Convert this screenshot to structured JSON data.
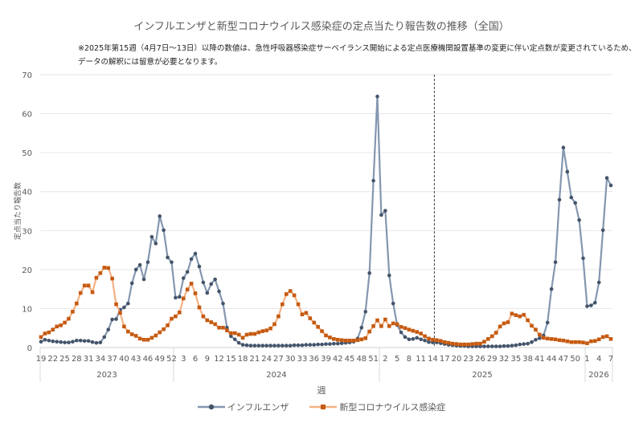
{
  "title": "インフルエンザと新型コロナウイルス感染症の定点当たり報告数の推移（全国）",
  "note_lines": [
    "※2025年第15週（4月7日～13日）以降の数値は、急性呼吸器感染症サーベイランス開始による定点医療機関設置基準の変更に伴い定点数が変更されているため、",
    "データの解釈には留意が必要となります。"
  ],
  "chart_data": {
    "type": "line",
    "title": "インフルエンザと新型コロナウイルス感染症の定点当たり報告数の推移（全国）",
    "xlabel": "週",
    "ylabel": "定点当たり報告数",
    "ylim": [
      0,
      70
    ],
    "yticks": [
      0,
      10,
      20,
      30,
      40,
      50,
      60,
      70
    ],
    "grid": true,
    "legend_placement": "bottom",
    "years": [
      {
        "year": "2023",
        "weeks": [
          19,
          52
        ]
      },
      {
        "year": "2024",
        "weeks": [
          1,
          52
        ]
      },
      {
        "year": "2025",
        "weeks": [
          1,
          52
        ]
      },
      {
        "year": "2026",
        "weeks": [
          1,
          7
        ]
      }
    ],
    "annotation": {
      "type": "dashed-vertical-line",
      "between": "2025 week 14 / week 15"
    },
    "series": [
      {
        "name": "インフルエンザ",
        "line_color": "#8497b0",
        "marker_color": "#44546a",
        "marker": "circle",
        "values": [
          1.5,
          2.0,
          1.8,
          1.6,
          1.5,
          1.4,
          1.3,
          1.3,
          1.5,
          1.8,
          1.8,
          1.7,
          1.7,
          1.4,
          1.2,
          1.3,
          2.7,
          4.6,
          7.2,
          7.3,
          9.7,
          10.3,
          11.3,
          16.5,
          20.0,
          21.2,
          17.5,
          21.9,
          28.4,
          26.7,
          33.7,
          30.1,
          23.1,
          21.9,
          12.8,
          13.0,
          17.8,
          19.4,
          22.7,
          24.1,
          20.8,
          16.7,
          14.0,
          16.3,
          17.5,
          14.4,
          11.3,
          5.1,
          2.9,
          2.1,
          1.2,
          0.7,
          0.6,
          0.5,
          0.5,
          0.5,
          0.5,
          0.5,
          0.5,
          0.5,
          0.5,
          0.5,
          0.5,
          0.5,
          0.6,
          0.6,
          0.6,
          0.7,
          0.7,
          0.7,
          0.8,
          0.8,
          0.9,
          0.9,
          1.0,
          1.0,
          1.1,
          1.2,
          1.3,
          1.5,
          2.3,
          5.1,
          9.2,
          19.1,
          42.8,
          64.4,
          34.0,
          35.1,
          18.5,
          11.3,
          5.8,
          3.9,
          2.7,
          2.1,
          2.2,
          2.5,
          2.1,
          1.8,
          1.4,
          1.3,
          1.3,
          1.1,
          0.9,
          0.7,
          0.6,
          0.5,
          0.4,
          0.4,
          0.3,
          0.3,
          0.3,
          0.3,
          0.3,
          0.3,
          0.3,
          0.3,
          0.3,
          0.4,
          0.4,
          0.5,
          0.6,
          0.8,
          0.9,
          1.0,
          1.4,
          2.0,
          2.4,
          3.1,
          6.4,
          15.0,
          21.9,
          37.9,
          51.3,
          45.1,
          38.5,
          37.1,
          32.7,
          22.9,
          10.6,
          10.8,
          11.5,
          16.7,
          30.1,
          43.5,
          41.6
        ]
      },
      {
        "name": "新型コロナウイルス感染症",
        "line_color": "#f4b183",
        "marker_color": "#c55a11",
        "marker": "square",
        "values": [
          2.7,
          3.6,
          3.9,
          4.6,
          5.4,
          5.7,
          6.4,
          7.4,
          9.2,
          11.3,
          14.0,
          15.9,
          15.9,
          14.2,
          17.9,
          19.1,
          20.5,
          20.4,
          17.7,
          11.1,
          8.9,
          5.4,
          4.1,
          3.4,
          3.0,
          2.3,
          2.0,
          2.0,
          2.5,
          3.1,
          3.9,
          4.7,
          5.7,
          7.4,
          8.0,
          9.0,
          12.6,
          14.9,
          16.4,
          13.9,
          10.3,
          8.0,
          7.0,
          6.5,
          6.0,
          5.1,
          5.1,
          4.4,
          3.7,
          3.7,
          3.3,
          2.5,
          3.3,
          3.5,
          3.5,
          3.9,
          4.2,
          4.4,
          4.9,
          6.0,
          8.0,
          11.1,
          13.7,
          14.5,
          13.4,
          11.1,
          8.5,
          8.9,
          7.5,
          6.4,
          5.3,
          4.2,
          3.1,
          2.6,
          2.2,
          2.0,
          1.9,
          1.8,
          1.8,
          1.8,
          1.9,
          2.1,
          2.4,
          4.1,
          5.5,
          7.0,
          5.5,
          7.2,
          5.5,
          6.2,
          6.0,
          5.3,
          5.0,
          4.6,
          4.3,
          4.0,
          3.6,
          2.9,
          2.3,
          2.0,
          1.9,
          1.7,
          1.4,
          1.2,
          1.0,
          0.9,
          0.8,
          0.8,
          0.8,
          0.9,
          1.0,
          1.0,
          1.5,
          2.2,
          2.9,
          3.8,
          5.4,
          6.2,
          6.5,
          8.7,
          8.3,
          8.0,
          8.4,
          7.0,
          5.6,
          4.6,
          3.3,
          2.5,
          2.3,
          2.2,
          2.1,
          1.9,
          1.8,
          1.6,
          1.4,
          1.4,
          1.4,
          1.3,
          1.1,
          1.6,
          1.7,
          2.1,
          2.7,
          2.9,
          2.2
        ]
      }
    ]
  }
}
